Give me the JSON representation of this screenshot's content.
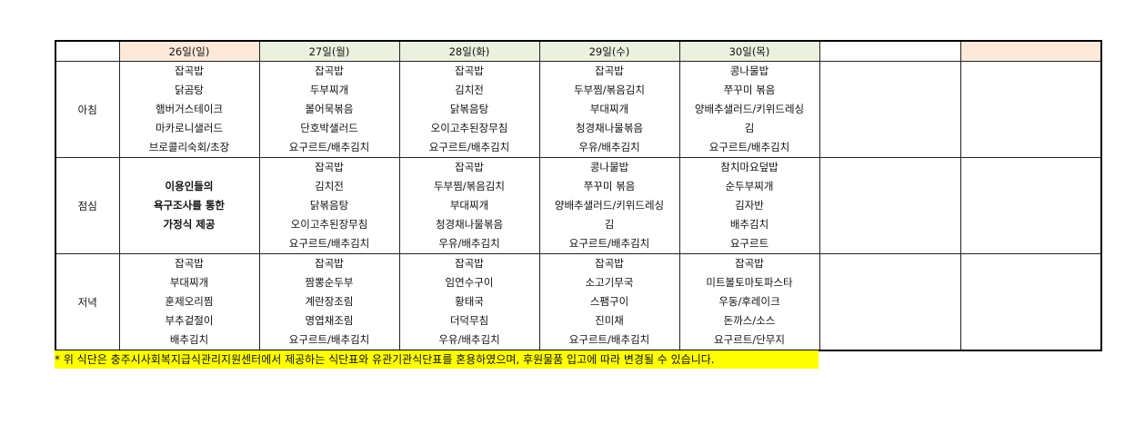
{
  "headers": [
    "",
    "26일(일)",
    "27일(월)",
    "28일(화)",
    "29일(수)",
    "30일(목)",
    "",
    ""
  ],
  "colors": {
    "header_green": "#ebf1de",
    "header_peach": "#fde9d9",
    "note_bg": "#ffff00"
  },
  "rows": [
    {
      "label": "아침",
      "cells": [
        [
          "잡곡밥",
          "닭곰탕",
          "햄버거스테이크",
          "마카로니샐러드",
          "브로콜리숙회/초장"
        ],
        [
          "잡곡밥",
          "두부찌개",
          "볼어묵볶음",
          "단호박샐러드",
          "요구르트/배추김치"
        ],
        [
          "잡곡밥",
          "김치전",
          "닭볶음탕",
          "오이고추된장무침",
          "요구르트/배추김치"
        ],
        [
          "잡곡밥",
          "두부찜/볶음김치",
          "부대찌개",
          "청경채나물볶음",
          "우유/배추김치"
        ],
        [
          "콩나물밥",
          "쭈꾸미 볶음",
          "양배추샐러드/키위드레싱",
          "김",
          "요구르트/배추김치"
        ],
        [],
        []
      ]
    },
    {
      "label": "점심",
      "cells": [
        [
          "이용인들의",
          "욕구조사를 통한",
          "가정식 제공"
        ],
        [
          "잡곡밥",
          "김치전",
          "닭볶음탕",
          "오이고추된장무침",
          "요구르트/배추김치"
        ],
        [
          "잡곡밥",
          "두부찜/볶음김치",
          "부대찌개",
          "청경채나물볶음",
          "우유/배추김치"
        ],
        [
          "콩나물밥",
          "쭈꾸미 볶음",
          "양배추샐러드/키위드레싱",
          "김",
          "요구르트/배추김치"
        ],
        [
          "참치마요덮밥",
          "순두부찌개",
          "김자반",
          "배추김치",
          "요구르트"
        ],
        [],
        []
      ]
    },
    {
      "label": "저녁",
      "cells": [
        [
          "잡곡밥",
          "부대찌개",
          "훈제오리찜",
          "부추겉절이",
          "배추김치"
        ],
        [
          "잡곡밥",
          "짬뽕순두부",
          "계란장조림",
          "명엽채조림",
          "요구르트/배추김치"
        ],
        [
          "잡곡밥",
          "임연수구이",
          "황태국",
          "더덕무침",
          "우유/배추김치"
        ],
        [
          "잡곡밥",
          "소고기무국",
          "스팸구이",
          "진미채",
          "요구르트/배추김치"
        ],
        [
          "잡곡밥",
          "미트볼토마토파스타",
          "우동/후레이크",
          "돈까스/소스",
          "요구르트/단무지"
        ],
        [],
        []
      ]
    }
  ],
  "note": "* 위 식단은 충주시사회복지급식관리지원센터에서 제공하는 식단표와 유관기관식단표를 혼용하였으며, 후원물품 입고에 따라 변경될 수 있습니다."
}
